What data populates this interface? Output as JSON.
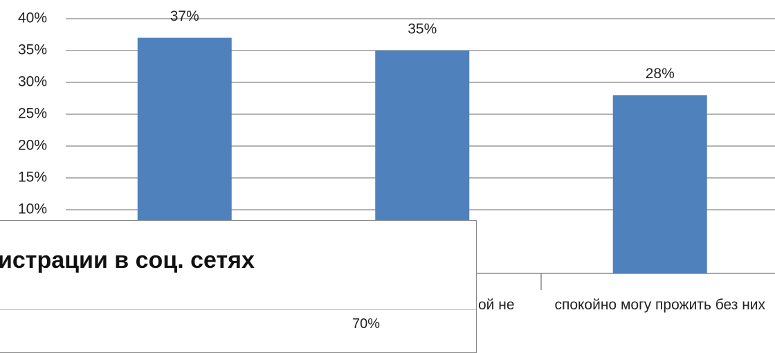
{
  "chart_data": [
    {
      "type": "bar",
      "categories": [
        null,
        "ой не",
        "спокойно могу прожить без них"
      ],
      "values": [
        37,
        35,
        28
      ],
      "value_labels": [
        "37%",
        "35%",
        "28%"
      ],
      "color": "#4f81bd",
      "ylim": [
        0,
        40
      ],
      "yticks": [
        {
          "value": 10,
          "label": "10%"
        },
        {
          "value": 15,
          "label": "15%"
        },
        {
          "value": 20,
          "label": "20%"
        },
        {
          "value": 25,
          "label": "25%"
        },
        {
          "value": 30,
          "label": "30%"
        },
        {
          "value": 35,
          "label": "35%"
        },
        {
          "value": 40,
          "label": "40%"
        }
      ],
      "grid": true
    },
    {
      "type": "panel",
      "title": "истрации в соц. сетях",
      "annotations": [
        "70%"
      ]
    }
  ]
}
